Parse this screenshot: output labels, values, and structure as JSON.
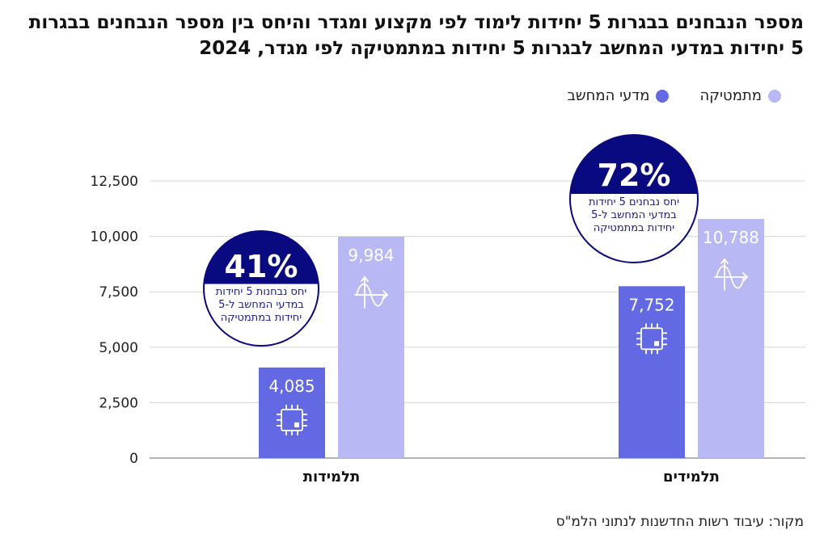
{
  "title": "מספר הנבחנים בבגרות 5 יחידות לימוד לפי מקצוע ומגדר והיחס בין מספר הנבחנים בבגרות 5 יחידות במדעי המחשב לבגרות 5 יחידות במתמטיקה לפי מגדר, 2024",
  "source": "מקור: עיבוד רשות החדשנות לנתוני הלמ\"ס",
  "colors": {
    "computer_science": "#6368e3",
    "math": "#b8b8f5",
    "circle": "#0a0a80"
  },
  "chart_data": {
    "type": "bar",
    "categories": [
      "תלמידות",
      "תלמידים"
    ],
    "series": [
      {
        "name": "מדעי המחשב",
        "values": [
          4085,
          7752
        ],
        "labels": [
          "4,085",
          "7,752"
        ],
        "icon": "chip-icon"
      },
      {
        "name": "מתמטיקה",
        "values": [
          9984,
          10788
        ],
        "labels": [
          "9,984",
          "10,788"
        ],
        "icon": "sine-wave-icon"
      }
    ],
    "ylim": [
      0,
      12500
    ],
    "yticks": [
      0,
      2500,
      5000,
      7500,
      10000,
      12500
    ],
    "ytick_labels": [
      "0",
      "2,500",
      "5,000",
      "7,500",
      "10,000",
      "12,500"
    ],
    "grid": true,
    "legend_position": "top-right",
    "annotations": [
      {
        "category": "תלמידות",
        "percent": "41%",
        "lines": [
          "יחס נבחנות 5 יחידות",
          "במדעי המחשב ל-5",
          "יחידות במתמטיקה"
        ]
      },
      {
        "category": "תלמידים",
        "percent": "72%",
        "lines": [
          "יחס נבחנים 5 יחידות",
          "במדעי המחשב ל-5",
          "יחידות במתמטיקה"
        ]
      }
    ]
  }
}
